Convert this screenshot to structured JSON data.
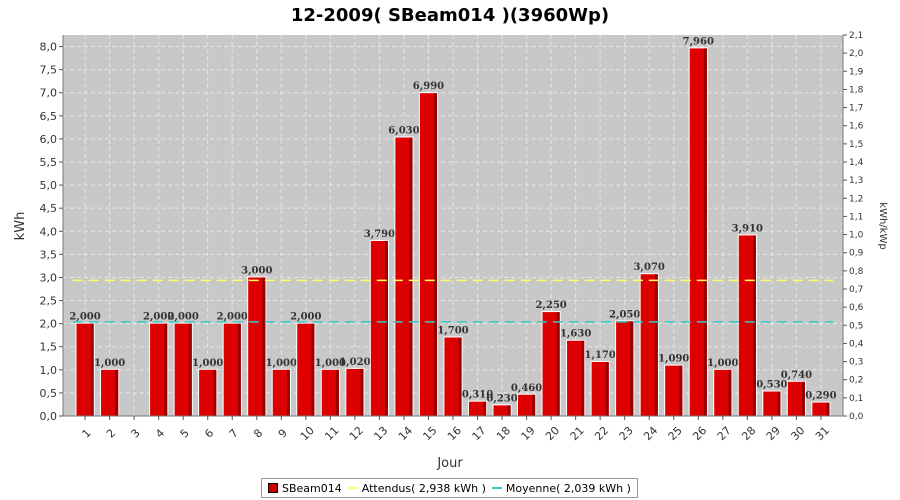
{
  "colors": {
    "plot_bg": "#c8c8c8",
    "bar": "#dd0000",
    "bar_dark": "#990000",
    "attendus": "#ffff66",
    "moyenne": "#33cccc",
    "grid": "#e6e6e6"
  },
  "chart_data": {
    "type": "bar",
    "title": "12-2009( SBeam014 )(3960Wp)",
    "xlabel": "Jour",
    "ylabel": "kWh",
    "y2label": "kWh/kWp",
    "ylim": [
      0,
      8.25
    ],
    "y2lim": [
      0,
      2.1
    ],
    "grid": true,
    "legend_position": "bottom",
    "categories": [
      "1",
      "2",
      "3",
      "4",
      "5",
      "6",
      "7",
      "8",
      "9",
      "10",
      "11",
      "12",
      "13",
      "14",
      "15",
      "16",
      "17",
      "18",
      "19",
      "20",
      "21",
      "22",
      "23",
      "24",
      "25",
      "26",
      "27",
      "28",
      "29",
      "30",
      "31"
    ],
    "yticks": [
      "0,0",
      "0,5",
      "1,0",
      "1,5",
      "2,0",
      "2,5",
      "3,0",
      "3,5",
      "4,0",
      "4,5",
      "5,0",
      "5,5",
      "6,0",
      "6,5",
      "7,0",
      "7,5",
      "8,0"
    ],
    "y2ticks": [
      "0,0",
      "0,1",
      "0,2",
      "0,3",
      "0,4",
      "0,5",
      "0,6",
      "0,7",
      "0,8",
      "0,9",
      "1,0",
      "1,1",
      "1,2",
      "1,3",
      "1,4",
      "1,5",
      "1,6",
      "1,7",
      "1,8",
      "1,9",
      "2,0",
      "2,1"
    ],
    "series": [
      {
        "name": "SBeam014",
        "values": [
          2.0,
          1.0,
          0,
          2.0,
          2.0,
          1.0,
          2.0,
          3.0,
          1.0,
          2.0,
          1.0,
          1.02,
          3.79,
          6.03,
          6.99,
          1.7,
          0.31,
          0.23,
          0.46,
          2.25,
          1.63,
          1.17,
          2.05,
          3.07,
          1.09,
          7.96,
          1.0,
          3.91,
          0.53,
          0.74,
          0.29
        ],
        "labels": [
          "2,000",
          "1,000",
          "",
          "2,000",
          "2,000",
          "1,000",
          "2,000",
          "3,000",
          "1,000",
          "2,000",
          "1,000",
          "1,020",
          "3,790",
          "6,030",
          "6,990",
          "1,700",
          "0,310",
          "0,230",
          "0,460",
          "2,250",
          "1,630",
          "1,170",
          "2,050",
          "3,070",
          "1,090",
          "7,960",
          "1,000",
          "3,910",
          "0,530",
          "0,740",
          "0,290"
        ]
      }
    ],
    "lines": [
      {
        "name": "Attendus",
        "value": 2.938
      },
      {
        "name": "Moyenne",
        "value": 2.039
      }
    ]
  },
  "legend": {
    "items": [
      {
        "label": "SBeam014"
      },
      {
        "label": "Attendus( 2,938 kWh )"
      },
      {
        "label": "Moyenne( 2,039 kWh )"
      }
    ]
  }
}
